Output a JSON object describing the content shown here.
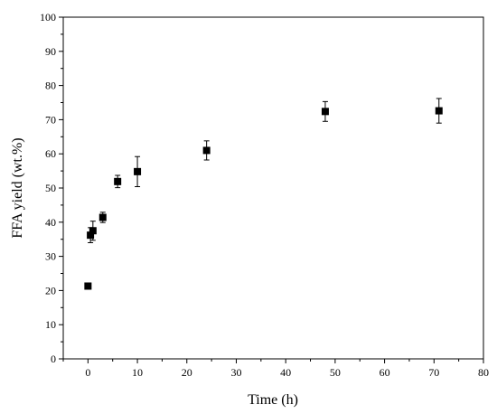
{
  "chart_data": {
    "type": "scatter",
    "xlabel": "Time (h)",
    "ylabel": "FFA yield (wt.%)",
    "xlim": [
      -5,
      80
    ],
    "ylim": [
      0,
      100
    ],
    "xticks": [
      0,
      10,
      20,
      30,
      40,
      50,
      60,
      70,
      80
    ],
    "yticks": [
      0,
      10,
      20,
      30,
      40,
      50,
      60,
      70,
      80,
      90,
      100
    ],
    "grid": false,
    "marker": "square",
    "marker_color": "#000000",
    "series": [
      {
        "points": [
          {
            "x": 0,
            "y": 21.3,
            "err": null
          },
          {
            "x": 0.5,
            "y": 36.2,
            "err": 2.2
          },
          {
            "x": 1,
            "y": 37.5,
            "err": 2.8
          },
          {
            "x": 3,
            "y": 41.4,
            "err": 1.5
          },
          {
            "x": 6,
            "y": 51.9,
            "err": 1.8
          },
          {
            "x": 10,
            "y": 54.8,
            "err": 4.4
          },
          {
            "x": 24,
            "y": 61.0,
            "err": 2.8
          },
          {
            "x": 48,
            "y": 72.4,
            "err": 2.9
          },
          {
            "x": 71,
            "y": 72.6,
            "err": 3.6
          }
        ]
      }
    ]
  }
}
